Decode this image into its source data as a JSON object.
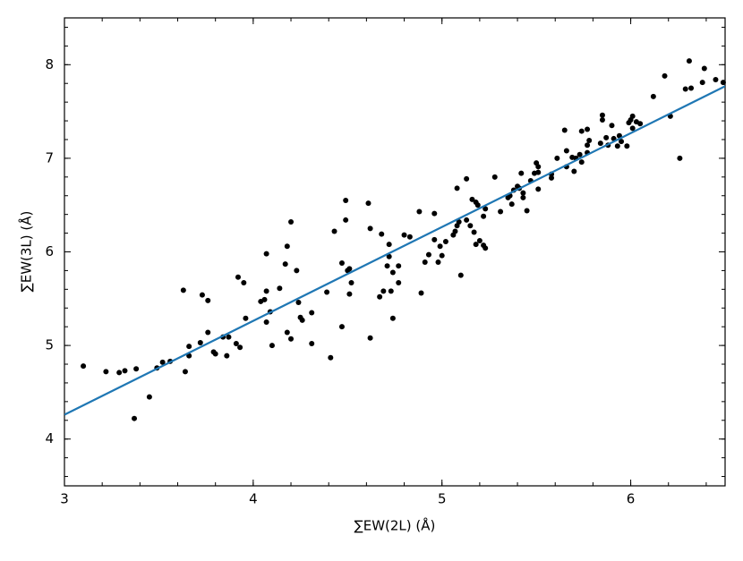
{
  "chart_data": {
    "type": "scatter",
    "xlabel": "∑EW(2L)  (Å)",
    "ylabel": "∑EW(3L)  (Å)",
    "xlim": [
      3,
      6.5
    ],
    "ylim": [
      3.5,
      8.5
    ],
    "xticks": [
      3,
      4,
      5,
      6
    ],
    "yticks": [
      4,
      5,
      6,
      7,
      8
    ],
    "color": "#000000",
    "x": [
      3.1,
      3.22,
      3.29,
      3.32,
      3.38,
      3.37,
      3.45,
      3.49,
      3.52,
      3.56,
      3.63,
      3.64,
      3.66,
      3.66,
      3.72,
      3.73,
      3.76,
      3.76,
      3.79,
      3.8,
      3.84,
      3.86,
      3.87,
      3.91,
      3.92,
      3.93,
      3.95,
      3.96,
      4.04,
      4.06,
      4.07,
      4.07,
      4.07,
      4.09,
      4.1,
      4.14,
      4.17,
      4.18,
      4.18,
      4.2,
      4.2,
      4.23,
      4.24,
      4.25,
      4.26,
      4.31,
      4.31,
      4.39,
      4.41,
      4.43,
      4.47,
      4.47,
      4.49,
      4.49,
      4.5,
      4.51,
      4.52,
      4.51,
      4.61,
      4.62,
      4.62,
      4.67,
      4.68,
      4.69,
      4.71,
      4.72,
      4.72,
      4.73,
      4.74,
      4.74,
      4.77,
      4.77,
      4.8,
      4.83,
      4.88,
      4.89,
      4.91,
      4.93,
      4.96,
      4.96,
      4.98,
      4.99,
      5.0,
      5.02,
      5.06,
      5.07,
      5.08,
      5.08,
      5.09,
      5.1,
      5.13,
      5.13,
      5.15,
      5.16,
      5.17,
      5.18,
      5.18,
      5.19,
      5.2,
      5.22,
      5.22,
      5.23,
      5.23,
      5.28,
      5.31,
      5.35,
      5.36,
      5.37,
      5.38,
      5.4,
      5.41,
      5.42,
      5.43,
      5.43,
      5.45,
      5.47,
      5.49,
      5.5,
      5.51,
      5.51,
      5.51,
      5.58,
      5.58,
      5.61,
      5.65,
      5.66,
      5.66,
      5.69,
      5.7,
      5.71,
      5.73,
      5.74,
      5.74,
      5.77,
      5.77,
      5.77,
      5.78,
      5.84,
      5.85,
      5.85,
      5.87,
      5.88,
      5.9,
      5.91,
      5.93,
      5.94,
      5.95,
      5.98,
      5.99,
      6.0,
      6.01,
      6.01,
      6.03,
      6.05,
      6.12,
      6.18,
      6.21,
      6.26,
      6.29,
      6.31,
      6.32,
      6.38,
      6.39,
      6.45,
      6.49
    ],
    "y": [
      4.78,
      4.72,
      4.71,
      4.73,
      4.75,
      4.22,
      4.45,
      4.76,
      4.82,
      4.83,
      5.59,
      4.72,
      4.89,
      4.99,
      5.03,
      5.54,
      5.48,
      5.14,
      4.93,
      4.91,
      5.09,
      4.89,
      5.09,
      5.02,
      5.73,
      4.98,
      5.67,
      5.29,
      5.47,
      5.49,
      5.98,
      5.58,
      5.25,
      5.36,
      5.0,
      5.61,
      5.87,
      6.06,
      5.14,
      6.32,
      5.07,
      5.8,
      5.46,
      5.3,
      5.27,
      5.35,
      5.02,
      5.57,
      4.87,
      6.22,
      5.88,
      5.2,
      6.55,
      6.34,
      5.8,
      5.55,
      5.67,
      5.82,
      6.52,
      6.25,
      5.08,
      5.52,
      6.19,
      5.58,
      5.85,
      6.08,
      5.95,
      5.58,
      5.78,
      5.29,
      5.85,
      5.67,
      6.18,
      6.16,
      6.43,
      5.56,
      5.89,
      5.97,
      6.41,
      6.13,
      5.89,
      6.06,
      5.96,
      6.11,
      6.18,
      6.22,
      6.68,
      6.28,
      6.32,
      5.75,
      6.78,
      6.34,
      6.28,
      6.56,
      6.21,
      6.53,
      6.08,
      6.5,
      6.12,
      6.07,
      6.38,
      6.04,
      6.46,
      6.8,
      6.43,
      6.58,
      6.6,
      6.51,
      6.66,
      6.7,
      6.68,
      6.84,
      6.58,
      6.63,
      6.44,
      6.76,
      6.84,
      6.95,
      6.91,
      6.85,
      6.67,
      6.83,
      6.79,
      7.0,
      7.3,
      7.08,
      6.91,
      7.01,
      6.86,
      7.0,
      7.04,
      6.96,
      7.29,
      7.06,
      7.31,
      7.14,
      7.19,
      7.16,
      7.41,
      7.46,
      7.22,
      7.14,
      7.35,
      7.21,
      7.13,
      7.24,
      7.18,
      7.13,
      7.38,
      7.41,
      7.45,
      7.32,
      7.39,
      7.37,
      7.66,
      7.88,
      7.45,
      7.0,
      7.74,
      8.04,
      7.75,
      7.81,
      7.96,
      7.84,
      7.81
    ],
    "line": {
      "x": [
        3,
        6.5
      ],
      "y": [
        4.26,
        7.77
      ],
      "color": "#1f77b4"
    }
  }
}
